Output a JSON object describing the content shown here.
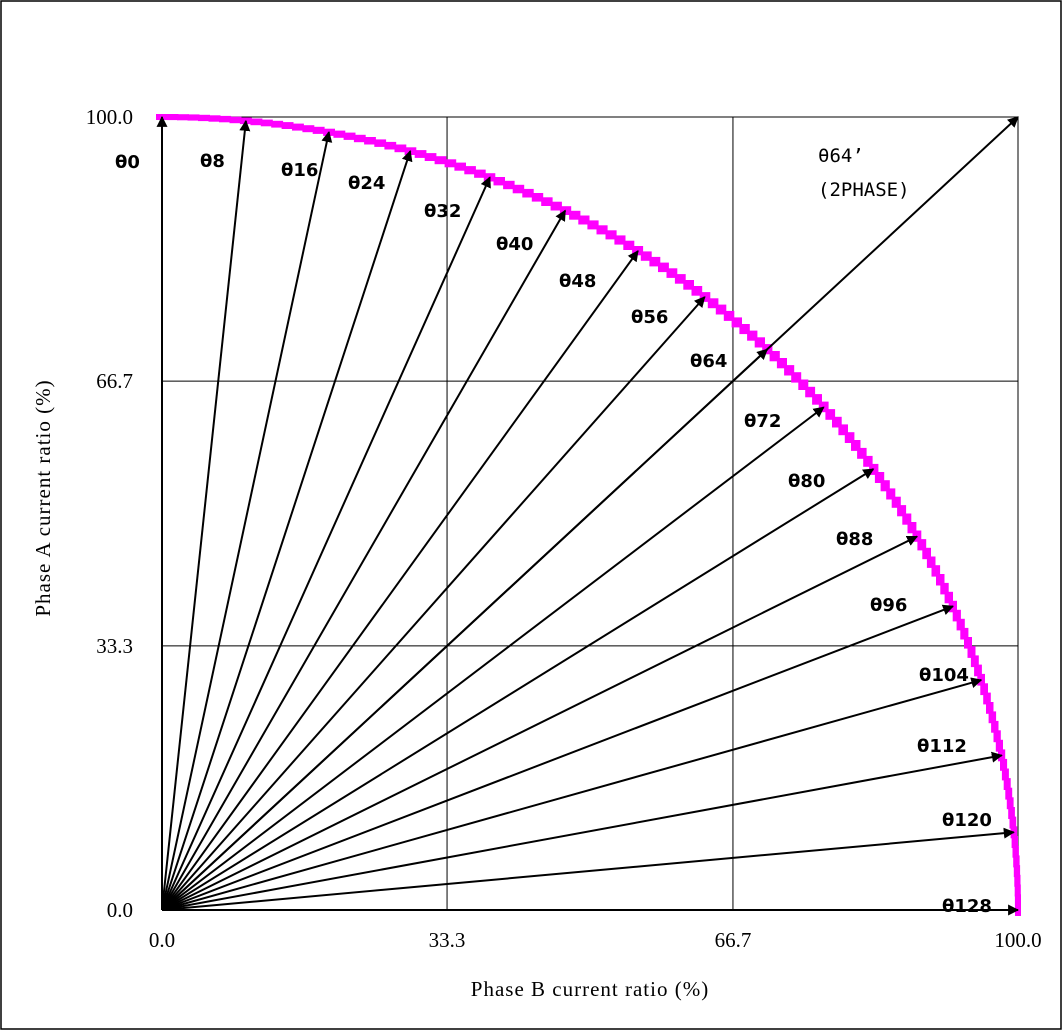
{
  "chart_data": {
    "type": "line",
    "xlabel": "Phase B current ratio (%)",
    "ylabel": "Phase A current ratio (%)",
    "xlim": [
      0,
      100
    ],
    "ylim": [
      0,
      100
    ],
    "x_ticks": [
      "0.0",
      "33.3",
      "66.7",
      "100.0"
    ],
    "y_ticks": [
      "0.0",
      "33.3",
      "66.7",
      "100.0"
    ],
    "x_tick_values": [
      0,
      33.3,
      66.7,
      100
    ],
    "y_tick_values": [
      0,
      33.3,
      66.7,
      100
    ],
    "grid": true,
    "series_color": "#0000ff",
    "marker_color": "#ff00ff",
    "rays": [
      {
        "label": "θ0",
        "x": 0.0,
        "y": 100.0
      },
      {
        "label": "θ8",
        "x": 9.8,
        "y": 99.5
      },
      {
        "label": "θ16",
        "x": 19.5,
        "y": 98.1
      },
      {
        "label": "θ24",
        "x": 29.0,
        "y": 95.7
      },
      {
        "label": "θ32",
        "x": 38.3,
        "y": 92.4
      },
      {
        "label": "θ40",
        "x": 47.1,
        "y": 88.2
      },
      {
        "label": "θ48",
        "x": 55.6,
        "y": 83.1
      },
      {
        "label": "θ56",
        "x": 63.4,
        "y": 77.3
      },
      {
        "label": "θ64",
        "x": 70.7,
        "y": 70.7
      },
      {
        "label": "θ72",
        "x": 77.3,
        "y": 63.4
      },
      {
        "label": "θ80",
        "x": 83.1,
        "y": 55.6
      },
      {
        "label": "θ88",
        "x": 88.2,
        "y": 47.1
      },
      {
        "label": "θ96",
        "x": 92.4,
        "y": 38.3
      },
      {
        "label": "θ104",
        "x": 95.7,
        "y": 29.0
      },
      {
        "label": "θ112",
        "x": 98.1,
        "y": 19.5
      },
      {
        "label": "θ120",
        "x": 99.5,
        "y": 9.8
      },
      {
        "label": "θ128",
        "x": 100.0,
        "y": 0.0
      }
    ],
    "two_phase_ray": {
      "label": "θ64’",
      "sublabel": "(2PHASE)",
      "x": 100.0,
      "y": 100.0
    },
    "curve_steps": 128
  }
}
